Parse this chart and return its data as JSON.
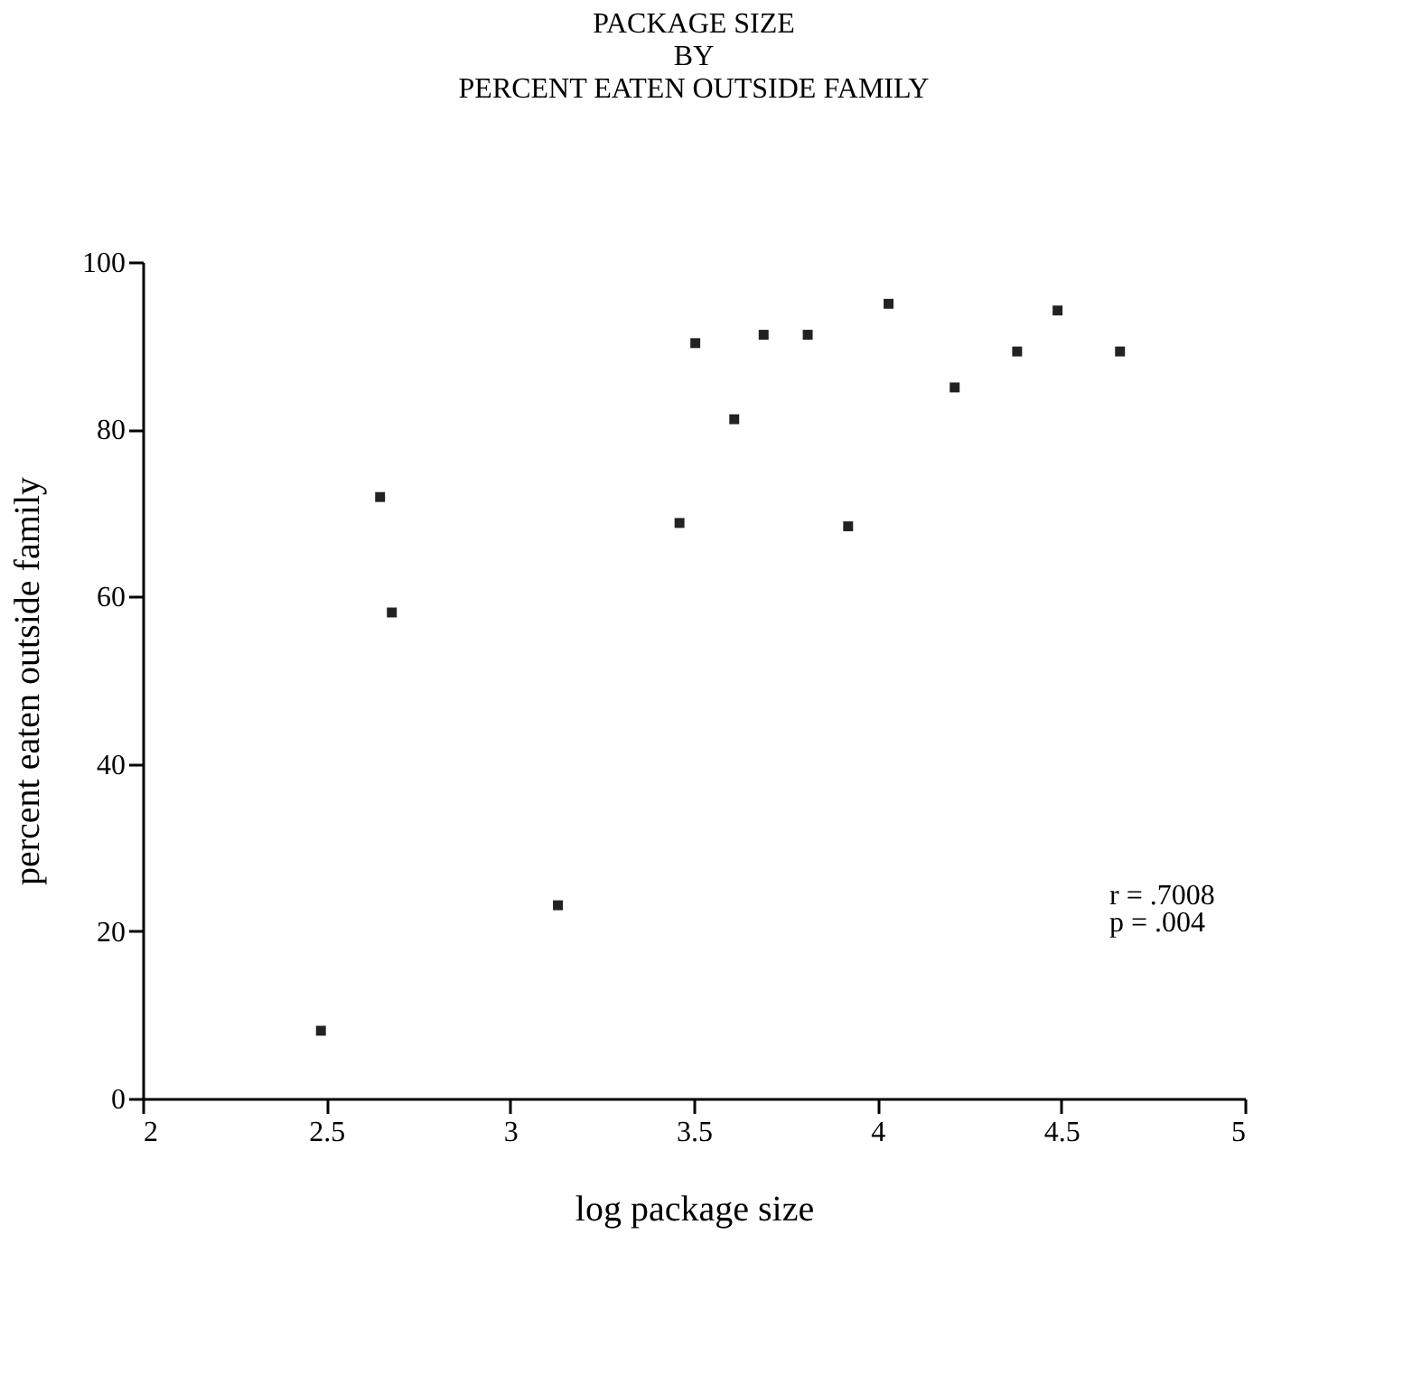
{
  "chart_data": {
    "type": "scatter",
    "title": [
      "PACKAGE SIZE",
      "BY",
      "PERCENT EATEN OUTSIDE FAMILY"
    ],
    "xlabel": "log package size",
    "ylabel": "percent eaten outside family",
    "x": [
      2.485,
      2.646,
      2.678,
      3.13,
      3.461,
      3.504,
      3.61,
      3.69,
      3.81,
      3.92,
      4.03,
      4.21,
      4.38,
      4.49,
      4.66
    ],
    "series": [
      {
        "color": "#222222",
        "values": [
          8.1,
          71.9,
          58.1,
          23.1,
          68.8,
          90.3,
          81.2,
          91.3,
          91.3,
          68.4,
          95.0,
          85.0,
          89.3,
          94.2,
          89.3
        ]
      }
    ],
    "xlim": [
      2,
      5
    ],
    "xticks": [
      2,
      2.5,
      3,
      3.5,
      4,
      4.5,
      5
    ],
    "ylim": [
      0,
      100
    ],
    "yticks": [
      0,
      20,
      40,
      60,
      80,
      100
    ],
    "marker": "square",
    "grid": false,
    "annotations": [
      "r = .7008",
      "p = .004"
    ]
  }
}
